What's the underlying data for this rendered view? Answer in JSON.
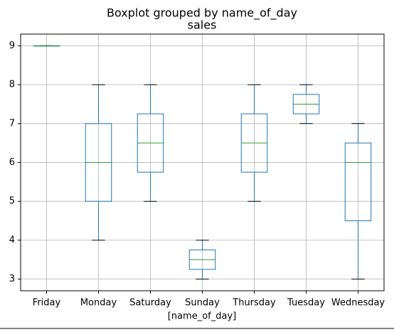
{
  "chart_data": {
    "type": "box",
    "title": "Boxplot grouped by name_of_day",
    "subtitle": "sales",
    "x_label": "[name_of_day]",
    "categories": [
      "Friday",
      "Monday",
      "Saturday",
      "Sunday",
      "Thursday",
      "Tuesday",
      "Wednesday"
    ],
    "boxes": [
      {
        "min": 9,
        "q1": 9,
        "median": 9,
        "q3": 9,
        "max": 9
      },
      {
        "min": 4,
        "q1": 5,
        "median": 6,
        "q3": 7,
        "max": 8
      },
      {
        "min": 5,
        "q1": 5.75,
        "median": 6.5,
        "q3": 7.25,
        "max": 8
      },
      {
        "min": 3,
        "q1": 3.25,
        "median": 3.5,
        "q3": 3.75,
        "max": 4
      },
      {
        "min": 5,
        "q1": 5.75,
        "median": 6.5,
        "q3": 7.25,
        "max": 8
      },
      {
        "min": 7,
        "q1": 7.25,
        "median": 7.5,
        "q3": 7.75,
        "max": 8
      },
      {
        "min": 3,
        "q1": 4.5,
        "median": 6,
        "q3": 6.5,
        "max": 7
      }
    ],
    "box_color": "#1f77b4",
    "median_color": "#2ca02c",
    "cap_color": "#000000",
    "ylim": [
      2.7,
      9.3
    ],
    "yticks": [
      3,
      4,
      5,
      6,
      7,
      8,
      9
    ],
    "grid": true
  }
}
